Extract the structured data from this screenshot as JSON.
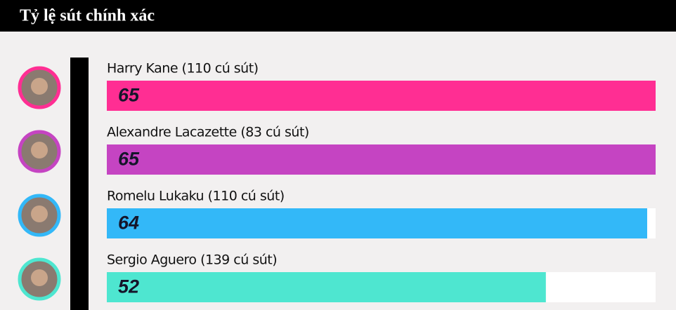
{
  "chart_data": {
    "type": "hbar",
    "title": "Tỷ lệ sút chính xác",
    "categories": [
      "Harry Kane (110 cú sút)",
      "Alexandre Lacazette (83 cú sút)",
      "Romelu Lukaku (110 cú sút)",
      "Sergio Aguero (139 cú sút)"
    ],
    "values": [
      65,
      65,
      64,
      52
    ],
    "colors": [
      "#ff2e93",
      "#c544c2",
      "#33b8f8",
      "#4ee6d0"
    ],
    "xlim": [
      0,
      65
    ]
  }
}
